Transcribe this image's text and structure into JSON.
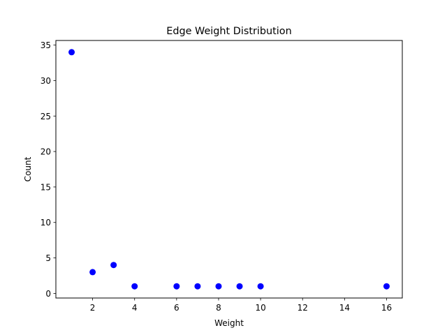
{
  "chart_data": {
    "type": "scatter",
    "title": "Edge Weight Distribution",
    "xlabel": "Weight",
    "ylabel": "Count",
    "xlim": [
      0.25,
      16.75
    ],
    "ylim": [
      -0.65,
      35.65
    ],
    "xticks": [
      2,
      4,
      6,
      8,
      10,
      12,
      14,
      16
    ],
    "yticks": [
      0,
      5,
      10,
      15,
      20,
      25,
      30,
      35
    ],
    "grid": false,
    "marker_color": "#0000ff",
    "points": [
      {
        "x": 1,
        "y": 34
      },
      {
        "x": 2,
        "y": 3
      },
      {
        "x": 3,
        "y": 4
      },
      {
        "x": 4,
        "y": 1
      },
      {
        "x": 6,
        "y": 1
      },
      {
        "x": 7,
        "y": 1
      },
      {
        "x": 8,
        "y": 1
      },
      {
        "x": 9,
        "y": 1
      },
      {
        "x": 10,
        "y": 1
      },
      {
        "x": 16,
        "y": 1
      }
    ]
  }
}
